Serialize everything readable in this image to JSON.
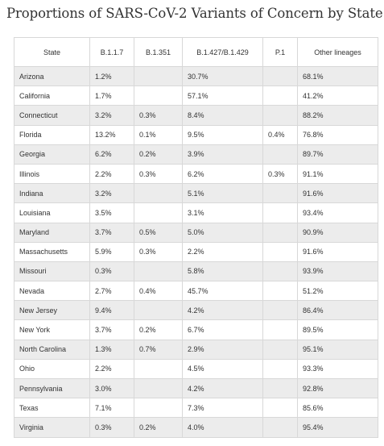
{
  "title": "Proportions of SARS-CoV-2 Variants of Concern by State",
  "chart_data": {
    "type": "table",
    "title": "Proportions of SARS-CoV-2 Variants of Concern by State",
    "columns": [
      "State",
      "B.1.1.7",
      "B.1.351",
      "B.1.427/B.1.429",
      "P.1",
      "Other lineages"
    ],
    "rows": [
      [
        "Arizona",
        "1.2%",
        "",
        "30.7%",
        "",
        "68.1%"
      ],
      [
        "California",
        "1.7%",
        "",
        "57.1%",
        "",
        "41.2%"
      ],
      [
        "Connecticut",
        "3.2%",
        "0.3%",
        "8.4%",
        "",
        "88.2%"
      ],
      [
        "Florida",
        "13.2%",
        "0.1%",
        "9.5%",
        "0.4%",
        "76.8%"
      ],
      [
        "Georgia",
        "6.2%",
        "0.2%",
        "3.9%",
        "",
        "89.7%"
      ],
      [
        "Illinois",
        "2.2%",
        "0.3%",
        "6.2%",
        "0.3%",
        "91.1%"
      ],
      [
        "Indiana",
        "3.2%",
        "",
        "5.1%",
        "",
        "91.6%"
      ],
      [
        "Louisiana",
        "3.5%",
        "",
        "3.1%",
        "",
        "93.4%"
      ],
      [
        "Maryland",
        "3.7%",
        "0.5%",
        "5.0%",
        "",
        "90.9%"
      ],
      [
        "Massachusetts",
        "5.9%",
        "0.3%",
        "2.2%",
        "",
        "91.6%"
      ],
      [
        "Missouri",
        "0.3%",
        "",
        "5.8%",
        "",
        "93.9%"
      ],
      [
        "Nevada",
        "2.7%",
        "0.4%",
        "45.7%",
        "",
        "51.2%"
      ],
      [
        "New Jersey",
        "9.4%",
        "",
        "4.2%",
        "",
        "86.4%"
      ],
      [
        "New York",
        "3.7%",
        "0.2%",
        "6.7%",
        "",
        "89.5%"
      ],
      [
        "North Carolina",
        "1.3%",
        "0.7%",
        "2.9%",
        "",
        "95.1%"
      ],
      [
        "Ohio",
        "2.2%",
        "",
        "4.5%",
        "",
        "93.3%"
      ],
      [
        "Pennsylvania",
        "3.0%",
        "",
        "4.2%",
        "",
        "92.8%"
      ],
      [
        "Texas",
        "7.1%",
        "",
        "7.3%",
        "",
        "85.6%"
      ],
      [
        "Virginia",
        "0.3%",
        "0.2%",
        "4.0%",
        "",
        "95.4%"
      ]
    ]
  }
}
